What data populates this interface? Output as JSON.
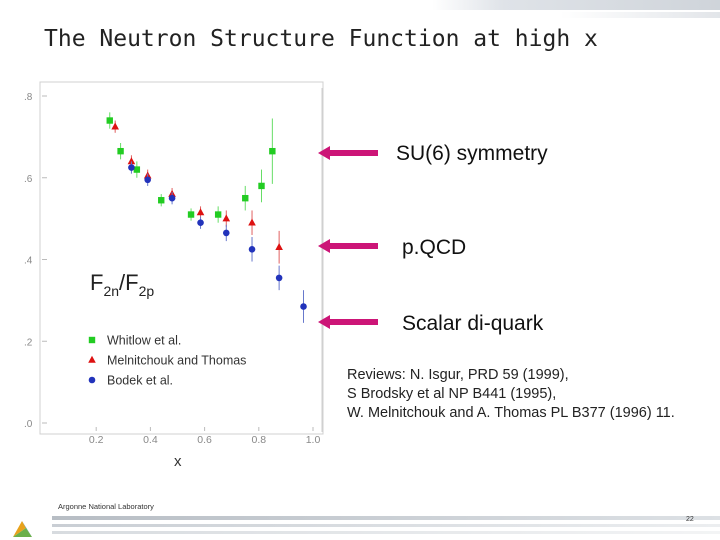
{
  "slide": {
    "title": "The Neutron Structure Function at high x",
    "footer_org": "Argonne National Laboratory",
    "page_number": "22"
  },
  "annotations": [
    {
      "label": "SU(6) symmetry",
      "value": 0.667
    },
    {
      "label": "p.QCD",
      "value": 0.429
    },
    {
      "label": "Scalar di-quark",
      "value": 0.25
    }
  ],
  "references": [
    "Reviews:  N. Isgur, PRD 59 (1999),",
    "S Brodsky et al NP B441 (1995),",
    "W. Melnitchouk and A. Thomas PL B377 (1996) 11."
  ],
  "colors": {
    "arrow": "#cc1577",
    "whitlow": "#22cc22",
    "melnitchouk": "#dd1111",
    "bodek": "#2233bb"
  },
  "chart_data": {
    "type": "scatter",
    "xlabel": "x",
    "ylabel_main": "F",
    "ylabel_sub1": "2n",
    "ylabel_slash": "/F",
    "ylabel_sub2": "2p",
    "xlim": [
      0.0,
      1.0
    ],
    "ylim": [
      0.0,
      0.8
    ],
    "x_ticks": [
      {
        "value": 0.2,
        "label": "0.2"
      },
      {
        "value": 0.4,
        "label": "0.4"
      },
      {
        "value": 0.6,
        "label": "0.6"
      },
      {
        "value": 0.8,
        "label": "0.8"
      },
      {
        "value": 1.0,
        "label": "1.0"
      }
    ],
    "y_ticks": [
      {
        "value": 0.0,
        "label": ".0"
      },
      {
        "value": 0.2,
        "label": ".2"
      },
      {
        "value": 0.4,
        "label": ".4"
      },
      {
        "value": 0.6,
        "label": ".6"
      },
      {
        "value": 0.8,
        "label": ".8"
      }
    ],
    "legend_position": "bottom-left",
    "series": [
      {
        "name": "Whitlow  et  al.",
        "marker": "square",
        "color": "#22cc22",
        "points": [
          {
            "x": 0.25,
            "y": 0.74,
            "err": 0.02
          },
          {
            "x": 0.29,
            "y": 0.665,
            "err": 0.02
          },
          {
            "x": 0.35,
            "y": 0.62,
            "err": 0.02
          },
          {
            "x": 0.44,
            "y": 0.545,
            "err": 0.015
          },
          {
            "x": 0.55,
            "y": 0.51,
            "err": 0.015
          },
          {
            "x": 0.65,
            "y": 0.51,
            "err": 0.02
          },
          {
            "x": 0.75,
            "y": 0.55,
            "err": 0.03
          },
          {
            "x": 0.81,
            "y": 0.58,
            "err": 0.04
          },
          {
            "x": 0.85,
            "y": 0.665,
            "err": 0.08
          }
        ]
      },
      {
        "name": "Melnitchouk  and  Thomas",
        "marker": "triangle",
        "color": "#dd1111",
        "points": [
          {
            "x": 0.27,
            "y": 0.725,
            "err": 0.015
          },
          {
            "x": 0.33,
            "y": 0.64,
            "err": 0.015
          },
          {
            "x": 0.39,
            "y": 0.605,
            "err": 0.015
          },
          {
            "x": 0.48,
            "y": 0.56,
            "err": 0.015
          },
          {
            "x": 0.585,
            "y": 0.515,
            "err": 0.015
          },
          {
            "x": 0.68,
            "y": 0.5,
            "err": 0.02
          },
          {
            "x": 0.775,
            "y": 0.49,
            "err": 0.03
          },
          {
            "x": 0.875,
            "y": 0.43,
            "err": 0.04
          }
        ]
      },
      {
        "name": "Bodek  et  al.",
        "marker": "circle",
        "color": "#2233bb",
        "points": [
          {
            "x": 0.33,
            "y": 0.625,
            "err": 0.015
          },
          {
            "x": 0.39,
            "y": 0.595,
            "err": 0.015
          },
          {
            "x": 0.48,
            "y": 0.55,
            "err": 0.015
          },
          {
            "x": 0.585,
            "y": 0.49,
            "err": 0.015
          },
          {
            "x": 0.68,
            "y": 0.465,
            "err": 0.02
          },
          {
            "x": 0.775,
            "y": 0.425,
            "err": 0.03
          },
          {
            "x": 0.875,
            "y": 0.355,
            "err": 0.03
          },
          {
            "x": 0.965,
            "y": 0.285,
            "err": 0.04
          }
        ]
      }
    ]
  }
}
